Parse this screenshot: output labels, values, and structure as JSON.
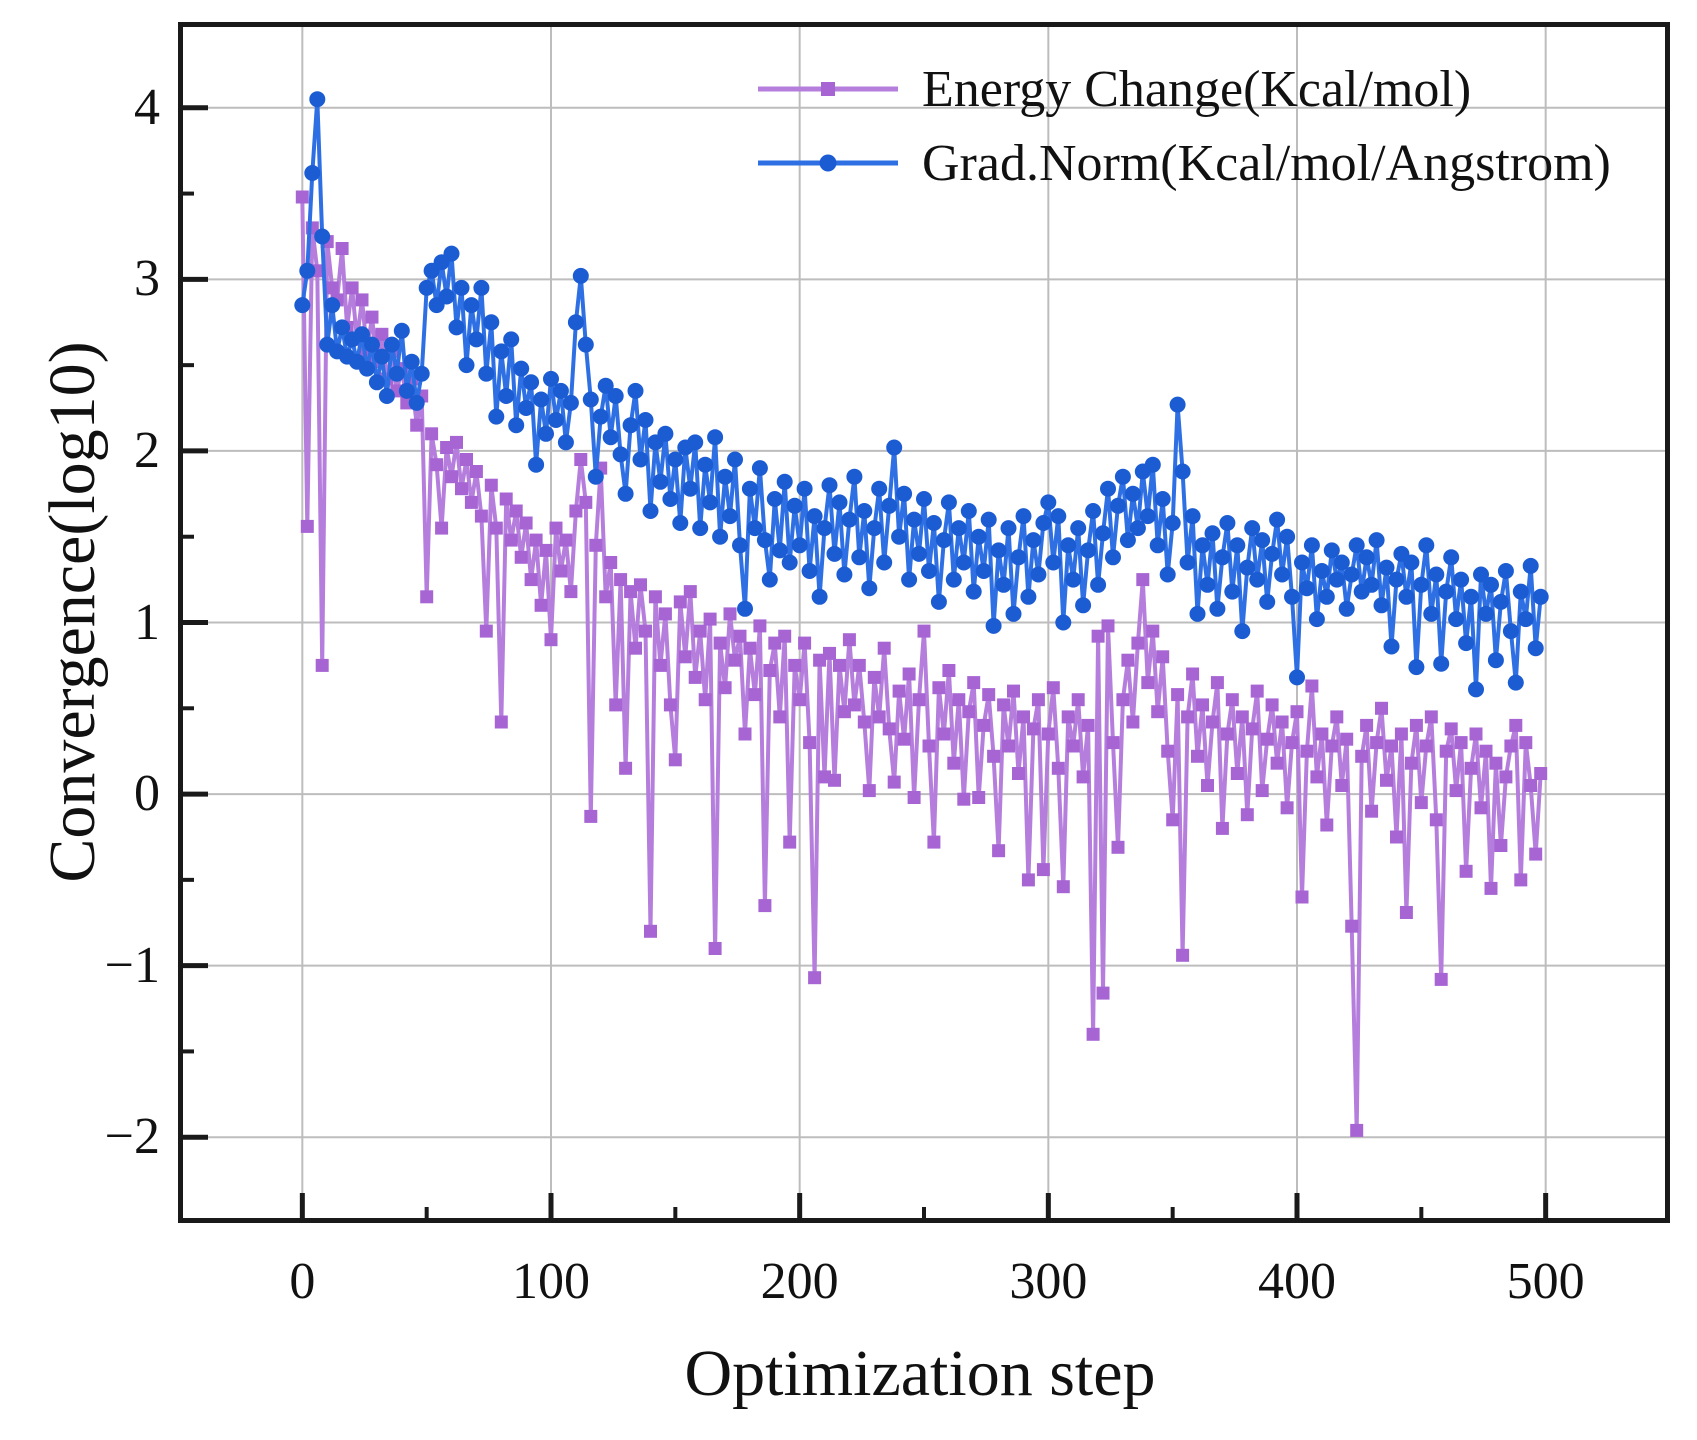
{
  "chart_data": {
    "type": "line",
    "title": "",
    "xlabel": "Optimization step",
    "ylabel": "Convergence(log10)",
    "xlim": [
      -50,
      550
    ],
    "ylim": [
      -2.5,
      4.5
    ],
    "xticks": [
      0,
      100,
      200,
      300,
      400,
      500
    ],
    "yticks": [
      4,
      3,
      2,
      1,
      0,
      -1,
      -2
    ],
    "minor_xtick_step": 50,
    "minor_ytick_step": 0.5,
    "grid": "major",
    "legend_position": "upper-right-inside",
    "x_encoding": {
      "start": 0,
      "step": 2,
      "count": 250
    },
    "colors": {
      "grid": "#bdbdbd",
      "spine": "#1a1a1a",
      "text": "#111111"
    },
    "series": [
      {
        "name": "Energy Change(Kcal/mol)",
        "marker": "square",
        "line_color": "#b57edd",
        "marker_color": "#a765d4",
        "values": [
          3.48,
          1.56,
          3.3,
          3.05,
          0.75,
          3.22,
          2.95,
          2.88,
          3.18,
          2.72,
          2.95,
          2.65,
          2.88,
          2.58,
          2.78,
          2.52,
          2.68,
          2.42,
          2.58,
          2.35,
          2.48,
          2.28,
          2.42,
          2.15,
          2.32,
          1.15,
          2.1,
          1.92,
          1.55,
          2.02,
          1.85,
          2.05,
          1.78,
          1.95,
          1.7,
          1.88,
          1.62,
          0.95,
          1.8,
          1.55,
          0.42,
          1.72,
          1.48,
          1.65,
          1.38,
          1.58,
          1.25,
          1.48,
          1.1,
          1.42,
          0.9,
          1.55,
          1.3,
          1.48,
          1.18,
          1.65,
          1.95,
          1.7,
          -0.13,
          1.45,
          1.9,
          1.15,
          1.35,
          0.52,
          1.25,
          0.15,
          1.18,
          0.85,
          1.22,
          0.95,
          -0.8,
          1.15,
          0.75,
          1.05,
          0.52,
          0.2,
          1.12,
          0.8,
          1.18,
          0.68,
          0.95,
          0.55,
          1.02,
          -0.9,
          0.88,
          0.62,
          1.05,
          0.78,
          0.92,
          0.35,
          0.85,
          0.58,
          0.98,
          -0.65,
          0.72,
          0.88,
          0.45,
          0.92,
          -0.28,
          0.75,
          0.55,
          0.88,
          0.3,
          -1.07,
          0.78,
          0.1,
          0.82,
          0.08,
          0.75,
          0.48,
          0.9,
          0.52,
          0.75,
          0.42,
          0.02,
          0.68,
          0.45,
          0.85,
          0.38,
          0.07,
          0.6,
          0.32,
          0.7,
          -0.02,
          0.55,
          0.95,
          0.28,
          -0.28,
          0.62,
          0.35,
          0.72,
          0.18,
          0.55,
          -0.03,
          0.48,
          0.65,
          -0.02,
          0.4,
          0.58,
          0.22,
          -0.33,
          0.52,
          0.28,
          0.6,
          0.12,
          0.45,
          -0.5,
          0.38,
          0.55,
          -0.44,
          0.35,
          0.62,
          0.15,
          -0.54,
          0.45,
          0.28,
          0.55,
          0.1,
          0.4,
          -1.4,
          0.92,
          -1.16,
          0.98,
          0.3,
          -0.31,
          0.55,
          0.78,
          0.42,
          0.88,
          1.25,
          0.65,
          0.95,
          0.48,
          0.8,
          0.25,
          -0.15,
          0.58,
          -0.94,
          0.45,
          0.7,
          0.22,
          0.52,
          0.05,
          0.42,
          0.65,
          -0.2,
          0.35,
          0.55,
          0.12,
          0.45,
          -0.12,
          0.38,
          0.6,
          0.02,
          0.32,
          0.52,
          0.18,
          0.42,
          -0.08,
          0.3,
          0.48,
          -0.6,
          0.25,
          0.63,
          0.1,
          0.35,
          -0.18,
          0.28,
          0.45,
          0.05,
          0.32,
          -0.77,
          -1.96,
          0.22,
          0.4,
          -0.1,
          0.3,
          0.5,
          0.08,
          0.28,
          -0.25,
          0.35,
          -0.69,
          0.18,
          0.4,
          -0.05,
          0.28,
          0.45,
          -0.15,
          -1.08,
          0.25,
          0.38,
          0.02,
          0.3,
          -0.45,
          0.15,
          0.35,
          -0.08,
          0.25,
          -0.55,
          0.18,
          -0.3,
          0.1,
          0.28,
          0.4,
          -0.5,
          0.3,
          0.05,
          -0.35,
          0.12
        ]
      },
      {
        "name": "Grad.Norm(Kcal/mol/Angstrom)",
        "marker": "circle",
        "line_color": "#2e70e4",
        "marker_color": "#1b5cd3",
        "values": [
          2.85,
          3.05,
          3.62,
          4.05,
          3.25,
          2.62,
          2.85,
          2.58,
          2.72,
          2.55,
          2.65,
          2.52,
          2.68,
          2.48,
          2.62,
          2.4,
          2.55,
          2.32,
          2.62,
          2.45,
          2.7,
          2.35,
          2.52,
          2.28,
          2.45,
          2.95,
          3.05,
          2.85,
          3.1,
          2.9,
          3.15,
          2.72,
          2.95,
          2.5,
          2.85,
          2.65,
          2.95,
          2.45,
          2.75,
          2.2,
          2.58,
          2.32,
          2.65,
          2.15,
          2.48,
          2.25,
          2.4,
          1.92,
          2.3,
          2.1,
          2.42,
          2.18,
          2.35,
          2.05,
          2.28,
          2.75,
          3.02,
          2.62,
          2.3,
          1.85,
          2.2,
          2.38,
          2.08,
          2.32,
          1.98,
          1.75,
          2.15,
          2.35,
          1.95,
          2.18,
          1.65,
          2.05,
          1.82,
          2.1,
          1.72,
          1.95,
          1.58,
          2.02,
          1.78,
          2.05,
          1.55,
          1.92,
          1.7,
          2.08,
          1.5,
          1.85,
          1.62,
          1.95,
          1.45,
          1.08,
          1.78,
          1.55,
          1.9,
          1.48,
          1.25,
          1.72,
          1.42,
          1.82,
          1.35,
          1.68,
          1.45,
          1.78,
          1.3,
          1.62,
          1.15,
          1.55,
          1.8,
          1.4,
          1.7,
          1.28,
          1.6,
          1.85,
          1.38,
          1.65,
          1.2,
          1.55,
          1.78,
          1.35,
          1.68,
          2.02,
          1.5,
          1.75,
          1.25,
          1.6,
          1.4,
          1.72,
          1.3,
          1.58,
          1.12,
          1.48,
          1.7,
          1.25,
          1.55,
          1.35,
          1.65,
          1.18,
          1.5,
          1.3,
          1.6,
          0.98,
          1.42,
          1.22,
          1.55,
          1.05,
          1.38,
          1.62,
          1.15,
          1.48,
          1.28,
          1.58,
          1.7,
          1.35,
          1.62,
          1.0,
          1.45,
          1.25,
          1.55,
          1.1,
          1.42,
          1.65,
          1.22,
          1.52,
          1.78,
          1.38,
          1.68,
          1.85,
          1.48,
          1.75,
          1.55,
          1.88,
          1.62,
          1.92,
          1.45,
          1.72,
          1.28,
          1.58,
          2.27,
          1.88,
          1.35,
          1.62,
          1.05,
          1.45,
          1.22,
          1.52,
          1.08,
          1.38,
          1.58,
          1.18,
          1.45,
          0.95,
          1.32,
          1.55,
          1.25,
          1.48,
          1.12,
          1.4,
          1.6,
          1.28,
          1.5,
          1.15,
          0.68,
          1.35,
          1.2,
          1.45,
          1.02,
          1.3,
          1.15,
          1.42,
          1.25,
          1.35,
          1.08,
          1.28,
          1.45,
          1.18,
          1.38,
          1.22,
          1.48,
          1.1,
          1.32,
          0.86,
          1.25,
          1.4,
          1.15,
          1.35,
          0.74,
          1.22,
          1.45,
          1.05,
          1.28,
          0.76,
          1.18,
          1.38,
          1.02,
          1.25,
          0.88,
          1.15,
          0.61,
          1.28,
          1.05,
          1.22,
          0.78,
          1.12,
          1.3,
          0.95,
          0.65,
          1.18,
          1.02,
          1.33,
          0.85,
          1.15
        ]
      }
    ]
  }
}
